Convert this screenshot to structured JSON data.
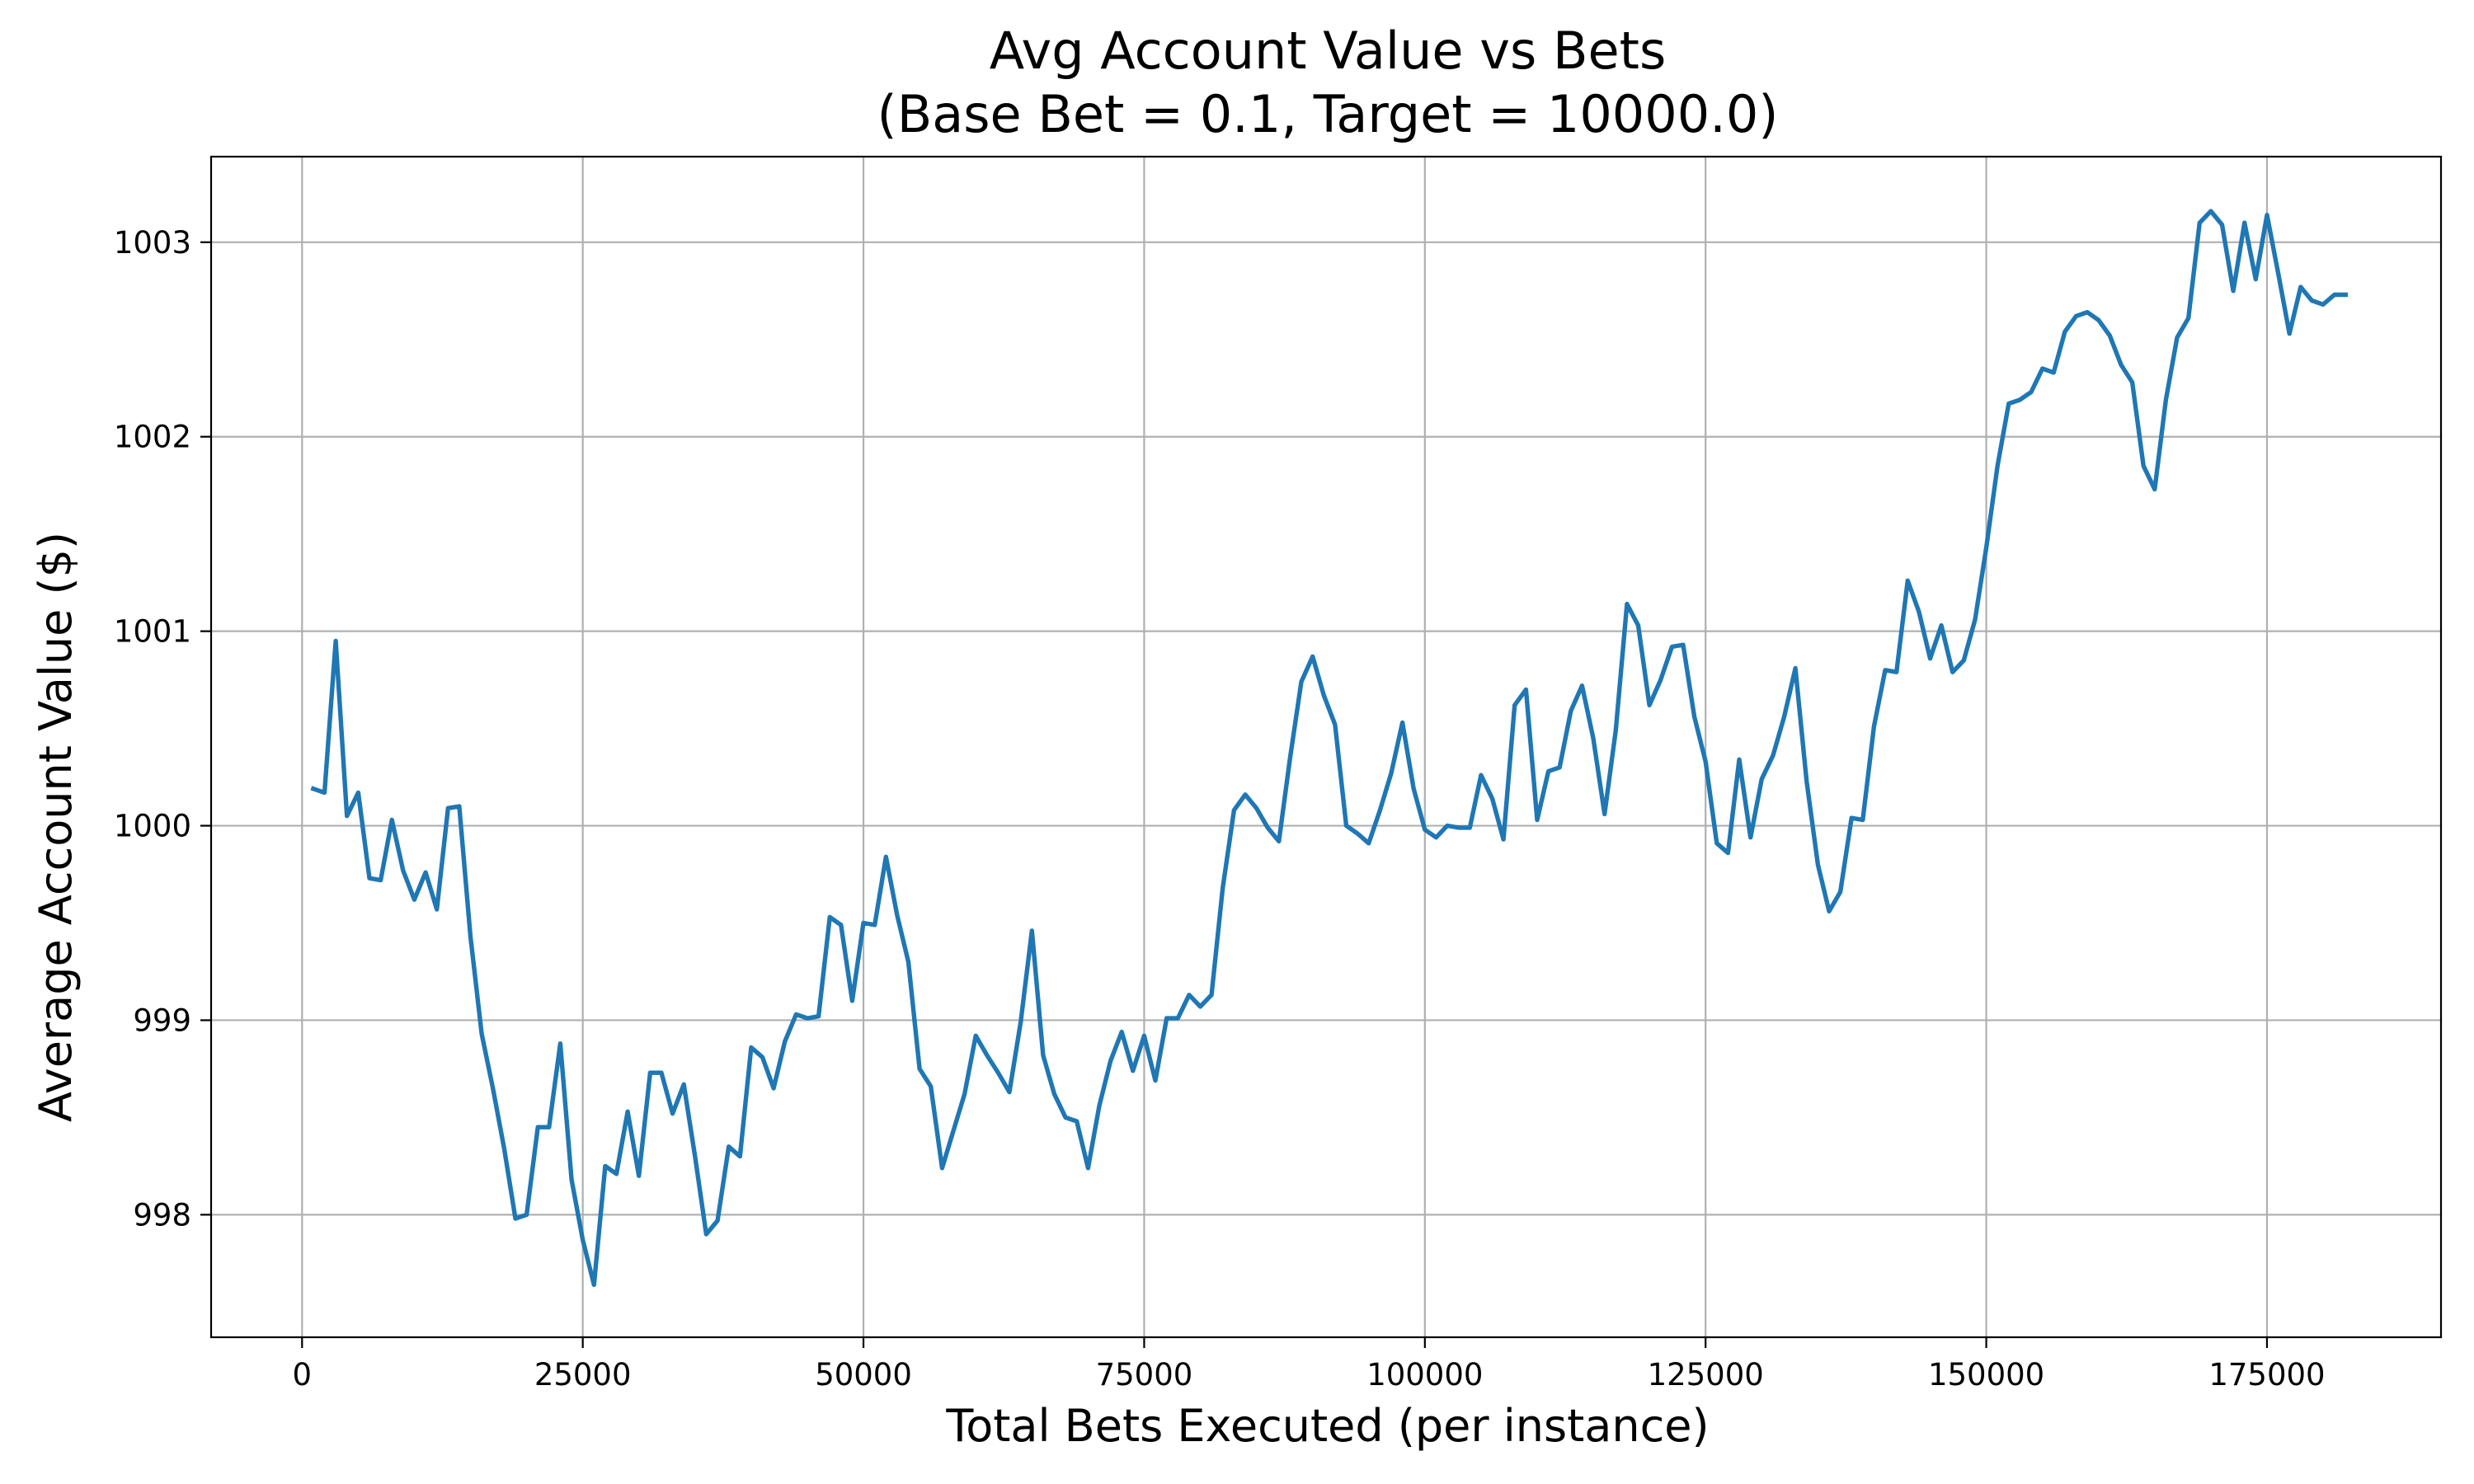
{
  "chart_data": {
    "type": "line",
    "title": "Avg Account Value vs Bets",
    "subtitle": "(Base Bet = 0.1, Target = 10000.0)",
    "xlabel": "Total Bets Executed (per instance)",
    "ylabel": "Average Account Value ($)",
    "xlim": [
      -8100,
      190500
    ],
    "ylim": [
      997.37,
      1003.44
    ],
    "x_ticks": [
      0,
      25000,
      50000,
      75000,
      100000,
      125000,
      150000,
      175000
    ],
    "x_tick_labels": [
      "0",
      "25000",
      "50000",
      "75000",
      "100000",
      "125000",
      "150000",
      "175000"
    ],
    "y_ticks": [
      998,
      999,
      1000,
      1001,
      1002,
      1003
    ],
    "y_tick_labels": [
      "998",
      "999",
      "1000",
      "1001",
      "1002",
      "1003"
    ],
    "grid": true,
    "legend": false,
    "series": [
      {
        "color": "#1f77b4",
        "x": [
          1000,
          2000,
          3000,
          4000,
          5000,
          6000,
          7000,
          8000,
          9000,
          10000,
          11000,
          12000,
          13000,
          14000,
          15000,
          16000,
          17000,
          18000,
          19000,
          20000,
          21000,
          22000,
          23000,
          24000,
          25000,
          26000,
          27000,
          28000,
          29000,
          30000,
          31000,
          32000,
          33000,
          34000,
          35000,
          36000,
          37000,
          38000,
          39000,
          40000,
          41000,
          42000,
          43000,
          44000,
          45000,
          46000,
          47000,
          48000,
          49000,
          50000,
          51000,
          52000,
          53000,
          54000,
          55000,
          56000,
          57000,
          58000,
          59000,
          60000,
          61000,
          62000,
          63000,
          64000,
          65000,
          66000,
          67000,
          68000,
          69000,
          70000,
          71000,
          72000,
          73000,
          74000,
          75000,
          76000,
          77000,
          78000,
          79000,
          80000,
          81000,
          82000,
          83000,
          84000,
          85000,
          86000,
          87000,
          88000,
          89000,
          90000,
          91000,
          92000,
          93000,
          94000,
          95000,
          96000,
          97000,
          98000,
          99000,
          100000,
          101000,
          102000,
          103000,
          104000,
          105000,
          106000,
          107000,
          108000,
          109000,
          110000,
          111000,
          112000,
          113000,
          114000,
          115000,
          116000,
          117000,
          118000,
          119000,
          120000,
          121000,
          122000,
          123000,
          124000,
          125000,
          126000,
          127000,
          128000,
          129000,
          130000,
          131000,
          132000,
          133000,
          134000,
          135000,
          136000,
          137000,
          138000,
          139000,
          140000,
          141000,
          142000,
          143000,
          144000,
          145000,
          146000,
          147000,
          148000,
          149000,
          150000,
          151000,
          152000,
          153000,
          154000,
          155000,
          156000,
          157000,
          158000,
          159000,
          160000,
          161000,
          162000,
          163000,
          164000,
          165000,
          166000,
          167000,
          168000,
          169000,
          170000,
          171000,
          172000,
          173000,
          174000,
          175000,
          176000,
          177000,
          178000,
          179000,
          180000,
          181000,
          182000
        ],
        "y": [
          1000.19,
          1000.17,
          1000.95,
          1000.05,
          1000.17,
          999.73,
          999.72,
          1000.03,
          999.77,
          999.62,
          999.76,
          999.57,
          1000.09,
          1000.1,
          999.43,
          998.93,
          998.65,
          998.34,
          997.98,
          998.0,
          998.45,
          998.45,
          998.88,
          998.18,
          997.87,
          997.64,
          998.25,
          998.21,
          998.53,
          998.2,
          998.73,
          998.73,
          998.52,
          998.67,
          998.3,
          997.9,
          997.97,
          998.35,
          998.3,
          998.86,
          998.81,
          998.65,
          998.89,
          999.03,
          999.01,
          999.02,
          999.53,
          999.49,
          999.1,
          999.5,
          999.49,
          999.84,
          999.54,
          999.3,
          998.75,
          998.66,
          998.24,
          998.43,
          998.62,
          998.92,
          998.82,
          998.73,
          998.63,
          998.99,
          999.46,
          998.82,
          998.62,
          998.5,
          998.48,
          998.24,
          998.56,
          998.79,
          998.94,
          998.74,
          998.92,
          998.69,
          999.01,
          999.01,
          999.13,
          999.07,
          999.13,
          999.68,
          1000.08,
          1000.16,
          1000.09,
          999.99,
          999.92,
          1000.35,
          1000.74,
          1000.87,
          1000.67,
          1000.52,
          1000.0,
          999.96,
          999.91,
          1000.08,
          1000.27,
          1000.53,
          1000.19,
          999.98,
          999.94,
          1000.0,
          999.99,
          999.99,
          1000.26,
          1000.14,
          999.93,
          1000.62,
          1000.7,
          1000.03,
          1000.28,
          1000.3,
          1000.59,
          1000.72,
          1000.45,
          1000.06,
          1000.49,
          1001.14,
          1001.03,
          1000.62,
          1000.75,
          1000.92,
          1000.93,
          1000.56,
          1000.33,
          999.91,
          999.86,
          1000.34,
          999.94,
          1000.24,
          1000.36,
          1000.56,
          1000.81,
          1000.23,
          999.8,
          999.56,
          999.66,
          1000.04,
          1000.03,
          1000.51,
          1000.8,
          1000.79,
          1001.26,
          1001.1,
          1000.86,
          1001.03,
          1000.79,
          1000.85,
          1001.06,
          1001.43,
          1001.85,
          1002.17,
          1002.19,
          1002.23,
          1002.35,
          1002.33,
          1002.54,
          1002.62,
          1002.64,
          1002.6,
          1002.52,
          1002.37,
          1002.28,
          1001.85,
          1001.73,
          1002.19,
          1002.51,
          1002.61,
          1003.1,
          1003.16,
          1003.09,
          1002.75,
          1003.1,
          1002.81,
          1003.14,
          1002.84,
          1002.53,
          1002.77,
          1002.7,
          1002.68,
          1002.73,
          1002.73
        ]
      }
    ]
  }
}
